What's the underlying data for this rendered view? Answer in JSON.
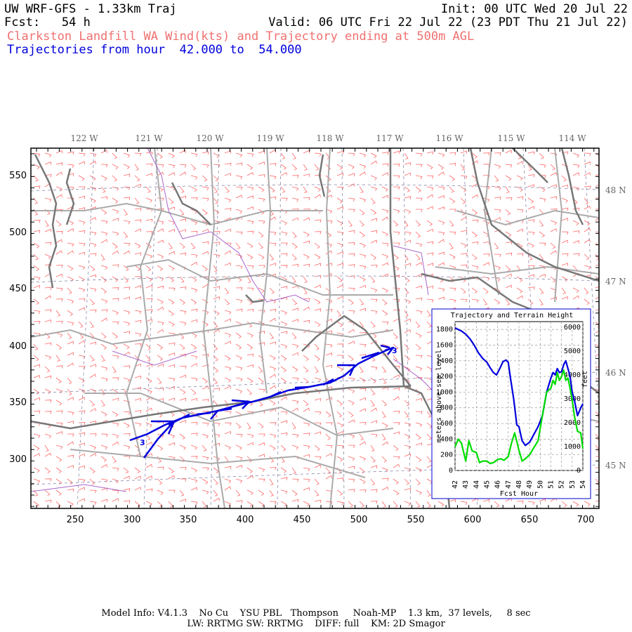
{
  "header": {
    "title_left": "UW WRF-GFS - 1.33km Traj",
    "title_right": "Init: 00 UTC Wed 20 Jul 22",
    "fcst_left": "Fcst:   54 h",
    "fcst_right": "Valid: 06 UTC Fri 22 Jul 22 (23 PDT Thu 21 Jul 22)",
    "field_line": "Clarkston Landfill WA Wind(kts) and Trajectory ending at 500m AGL",
    "traj_line": "Trajectories from hour  42.000 to  54.000"
  },
  "map": {
    "lon_labels": [
      "122 W",
      "121 W",
      "120 W",
      "119 W",
      "118 W",
      "117 W",
      "116 W",
      "115 W",
      "114 W"
    ],
    "lat_labels": [
      "48 N",
      "47 N",
      "46 N",
      "45 N"
    ],
    "x_ticks": [
      "250",
      "300",
      "350",
      "400",
      "450",
      "500",
      "550",
      "600",
      "650",
      "700"
    ],
    "y_ticks": [
      "550",
      "500",
      "450",
      "400",
      "350",
      "300"
    ],
    "trajectory_start_label": "3",
    "trajectory_end_label": "3"
  },
  "inset": {
    "title": "Trajectory and Terrain Height",
    "ylabel_left": "meters above sea level",
    "ylabel_right": "feet",
    "xlabel": "Fcst Hour",
    "left_ticks": [
      "0",
      "200",
      "400",
      "600",
      "800",
      "1000",
      "1200",
      "1400",
      "1600",
      "1800"
    ],
    "right_ticks": [
      "0",
      "1000",
      "2000",
      "3000",
      "4000",
      "5000",
      "6000"
    ],
    "x_ticks": [
      "42",
      "43",
      "44",
      "45",
      "46",
      "47",
      "48",
      "49",
      "50",
      "51",
      "52",
      "53",
      "54"
    ]
  },
  "chart_data": {
    "type": "line",
    "title": "Trajectory and Terrain Height",
    "xlabel": "Fcst Hour",
    "ylabel": "meters above sea level",
    "xlim": [
      42,
      54
    ],
    "ylim": [
      0,
      1900
    ],
    "series": [
      {
        "color": "#0000dd",
        "x": [
          42,
          42.3,
          42.6,
          43,
          43.4,
          43.8,
          44.2,
          44.6,
          45,
          45.3,
          45.6,
          45.9,
          46.2,
          46.5,
          46.8,
          47,
          47.2,
          47.5,
          47.8,
          48,
          48.3,
          48.6,
          49,
          49.4,
          49.8,
          50.2,
          50.6,
          51,
          51.2,
          51.4,
          51.6,
          51.8,
          52,
          52.2,
          52.4,
          52.6,
          52.8,
          53,
          53.2,
          53.5,
          53.8,
          54
        ],
        "y": [
          1820,
          1800,
          1780,
          1740,
          1680,
          1600,
          1500,
          1430,
          1380,
          1310,
          1250,
          1220,
          1300,
          1390,
          1410,
          1380,
          1180,
          920,
          580,
          560,
          380,
          320,
          360,
          460,
          560,
          700,
          1000,
          1180,
          1250,
          1220,
          1300,
          1250,
          1260,
          1350,
          1400,
          1300,
          1200,
          1000,
          900,
          700,
          800,
          850
        ]
      },
      {
        "color": "#00dd00",
        "x": [
          42,
          42.3,
          42.6,
          43,
          43.3,
          43.6,
          44,
          44.3,
          44.6,
          45,
          45.3,
          45.6,
          46,
          46.3,
          46.6,
          47,
          47.3,
          47.6,
          48,
          48.3,
          48.6,
          49,
          49.4,
          49.8,
          50.2,
          50.6,
          51,
          51.2,
          51.4,
          51.6,
          51.8,
          52,
          52.2,
          52.4,
          52.6,
          52.8,
          53,
          53.2,
          53.5,
          53.8,
          54
        ],
        "y": [
          300,
          400,
          350,
          120,
          380,
          250,
          230,
          100,
          120,
          120,
          90,
          100,
          140,
          150,
          130,
          180,
          350,
          480,
          260,
          120,
          150,
          200,
          290,
          380,
          700,
          1000,
          1050,
          1150,
          1100,
          1250,
          1150,
          1200,
          1280,
          1150,
          1180,
          1050,
          900,
          700,
          500,
          480,
          280
        ]
      }
    ]
  },
  "footer": {
    "line1": "Model Info: V4.1.3    No Cu    YSU PBL   Thompson     Noah-MP    1.3 km,  37 levels,     8 sec",
    "line2": "LW: RRTMG SW: RRTMG    DIFF: full    KM: 2D Smagor"
  },
  "colors": {
    "trajectory": "#0000dd",
    "terrain": "#00dd00",
    "wind_barbs": "#ff6666",
    "counties": "#aaaaaa",
    "rivers": "#aa66cc"
  }
}
